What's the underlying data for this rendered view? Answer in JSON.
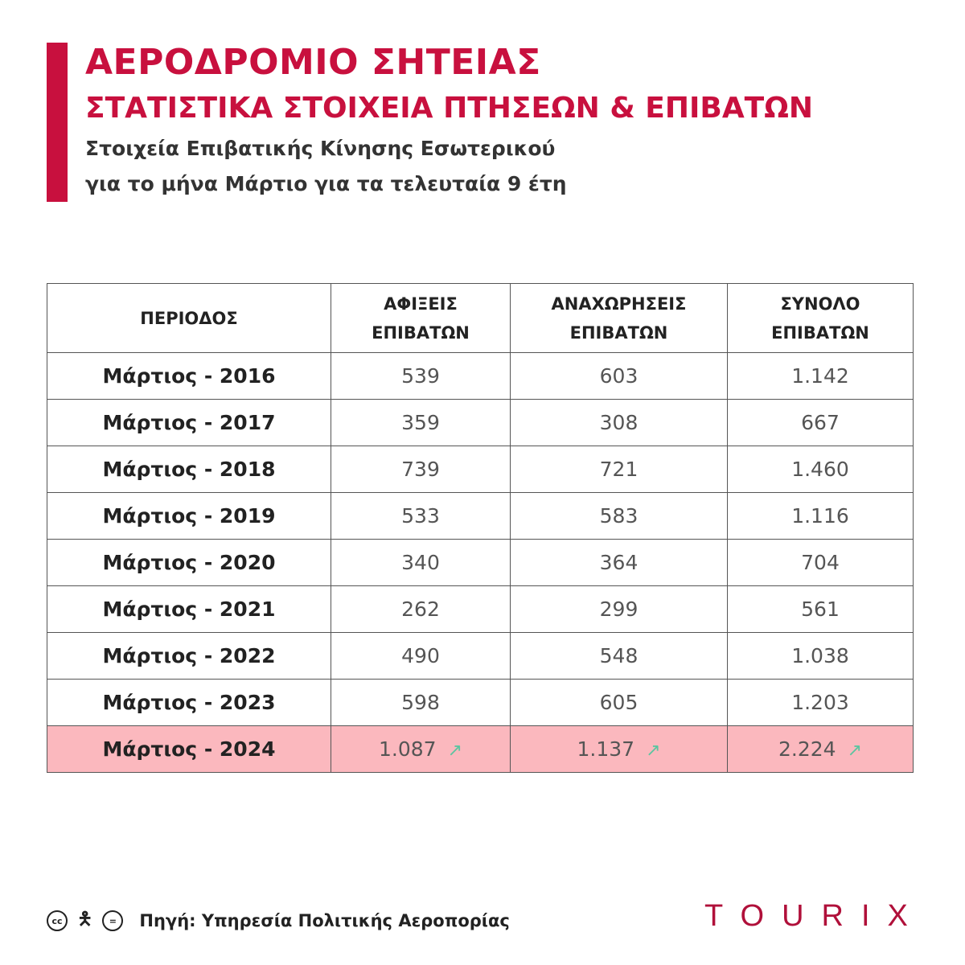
{
  "header": {
    "title": "ΑΕΡΟΔΡΟΜΙΟ ΣΗΤΕΙΑΣ",
    "subtitle": "ΣΤΑΤΙΣΤΙΚΑ ΣΤΟΙΧΕΙΑ ΠΤΗΣΕΩΝ & ΕΠΙΒΑΤΩΝ",
    "line1": "Στοιχεία Επιβατικής Κίνησης Εσωτερικού",
    "line2": "για το μήνα Μάρτιο για τα τελευταία 9 έτη",
    "accent": "#c8103e"
  },
  "table": {
    "headers": [
      [
        "ΠΕΡΙΟΔΟΣ",
        ""
      ],
      [
        "ΑΦΙΞΕΙΣ",
        "ΕΠΙΒΑΤΩΝ"
      ],
      [
        "ΑΝΑΧΩΡΗΣΕΙΣ",
        "ΕΠΙΒΑΤΩΝ"
      ],
      [
        "ΣΥΝΟΛΟ",
        "ΕΠΙΒΑΤΩΝ"
      ]
    ],
    "rows": [
      [
        "Μάρτιος - 2016",
        "539",
        "603",
        "1.142"
      ],
      [
        "Μάρτιος - 2017",
        "359",
        "308",
        "667"
      ],
      [
        "Μάρτιος - 2018",
        "739",
        "721",
        "1.460"
      ],
      [
        "Μάρτιος - 2019",
        "533",
        "583",
        "1.116"
      ],
      [
        "Μάρτιος - 2020",
        "340",
        "364",
        "704"
      ],
      [
        "Μάρτιος - 2021",
        "262",
        "299",
        "561"
      ],
      [
        "Μάρτιος - 2022",
        "490",
        "548",
        "1.038"
      ],
      [
        "Μάρτιος - 2023",
        "598",
        "605",
        "1.203"
      ],
      [
        "Μάρτιος - 2024",
        "1.087",
        "1.137",
        "2.224"
      ]
    ],
    "highlight_color": "#fbb8be",
    "trend_icon": "trending-up-icon",
    "trend_color": "#5cc5a0"
  },
  "footer": {
    "license_icons": [
      "cc-icon",
      "by-icon",
      "nd-icon"
    ],
    "source": "Πηγή: Υπηρεσία Πολιτικής Αεροπορίας",
    "logo": "TOURIX"
  }
}
